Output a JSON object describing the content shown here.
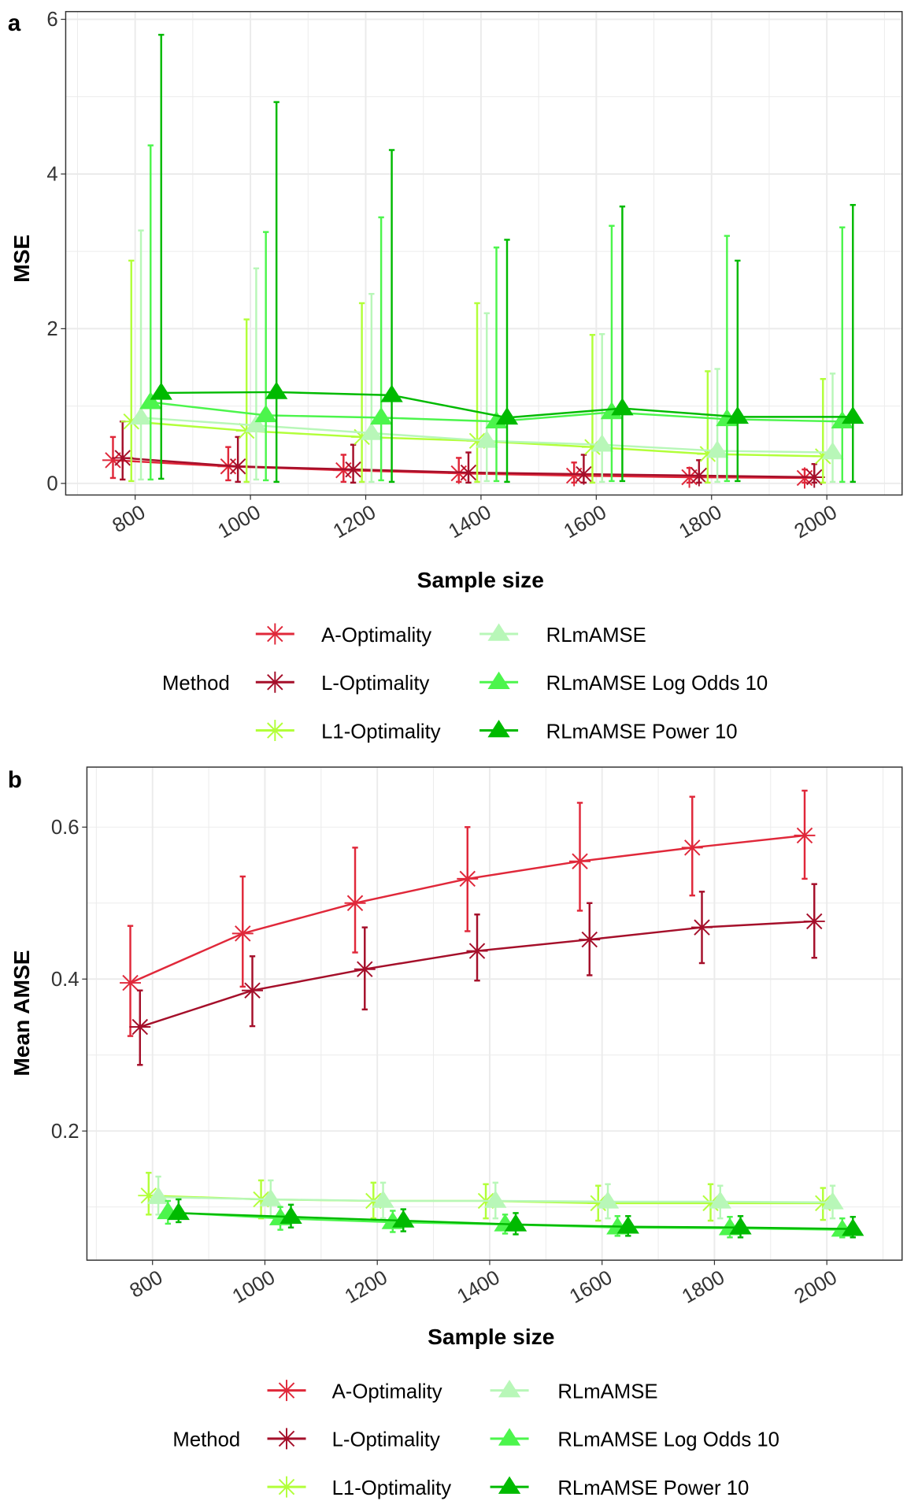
{
  "colors": {
    "A-Optimality": "#E0283A",
    "L-Optimality": "#A50F2A",
    "L1-Optimality": "#B2FF3A",
    "RLmAMSE": "#B8F7B8",
    "RLmAMSE Log Odds 10": "#4CF54C",
    "RLmAMSE Power 10": "#00BA00"
  },
  "legend": {
    "title": "Method",
    "items": [
      {
        "label": "A-Optimality",
        "shape": "asterisk"
      },
      {
        "label": "L-Optimality",
        "shape": "asterisk"
      },
      {
        "label": "L1-Optimality",
        "shape": "asterisk"
      },
      {
        "label": "RLmAMSE",
        "shape": "triangle"
      },
      {
        "label": "RLmAMSE Log Odds 10",
        "shape": "triangle"
      },
      {
        "label": "RLmAMSE Power 10",
        "shape": "triangle"
      }
    ]
  },
  "chart_data": [
    {
      "panel": "a",
      "type": "line",
      "xlabel": "Sample size",
      "ylabel": "MSE",
      "x": [
        800,
        1000,
        1200,
        1400,
        1600,
        1800,
        2000
      ],
      "xticks": [
        "800",
        "1000",
        "1200",
        "1400",
        "1600",
        "1800",
        "2000"
      ],
      "yticks": [
        "0",
        "2",
        "4",
        "6"
      ],
      "ylim": [
        -0.15,
        6.1
      ],
      "grid": true,
      "legend_position": "bottom",
      "series": [
        {
          "name": "A-Optimality",
          "values": [
            0.3,
            0.22,
            0.17,
            0.13,
            0.1,
            0.08,
            0.07
          ],
          "lower": [
            0.07,
            0.04,
            0.02,
            0.02,
            0.01,
            0.01,
            0.01
          ],
          "upper": [
            0.6,
            0.47,
            0.37,
            0.33,
            0.27,
            0.2,
            0.18
          ]
        },
        {
          "name": "L-Optimality",
          "values": [
            0.33,
            0.22,
            0.18,
            0.14,
            0.12,
            0.1,
            0.08
          ],
          "lower": [
            0.05,
            0.02,
            0.01,
            0.01,
            0.01,
            0.01,
            0.01
          ],
          "upper": [
            0.8,
            0.6,
            0.5,
            0.4,
            0.37,
            0.3,
            0.25
          ]
        },
        {
          "name": "L1-Optimality",
          "values": [
            0.8,
            0.68,
            0.6,
            0.55,
            0.47,
            0.38,
            0.35
          ],
          "lower": [
            0.03,
            0.02,
            0.02,
            0.02,
            0.01,
            0.01,
            0.01
          ],
          "upper": [
            2.88,
            2.12,
            2.33,
            2.33,
            1.92,
            1.45,
            1.35
          ]
        },
        {
          "name": "RLmAMSE",
          "values": [
            0.85,
            0.75,
            0.65,
            0.55,
            0.5,
            0.42,
            0.4
          ],
          "lower": [
            0.05,
            0.05,
            0.02,
            0.03,
            0.02,
            0.02,
            0.02
          ],
          "upper": [
            3.27,
            2.78,
            2.45,
            2.2,
            1.93,
            1.48,
            1.42
          ]
        },
        {
          "name": "RLmAMSE Log Odds 10",
          "values": [
            1.05,
            0.88,
            0.85,
            0.8,
            0.92,
            0.83,
            0.8
          ],
          "lower": [
            0.05,
            0.04,
            0.04,
            0.03,
            0.03,
            0.03,
            0.02
          ],
          "upper": [
            4.37,
            3.25,
            3.44,
            3.05,
            3.33,
            3.2,
            3.31
          ]
        },
        {
          "name": "RLmAMSE Power 10",
          "values": [
            1.17,
            1.18,
            1.14,
            0.85,
            0.97,
            0.86,
            0.86
          ],
          "lower": [
            0.06,
            0.02,
            0.02,
            0.02,
            0.03,
            0.03,
            0.02
          ],
          "upper": [
            5.8,
            4.93,
            4.31,
            3.15,
            3.58,
            2.88,
            3.6
          ]
        }
      ]
    },
    {
      "panel": "b",
      "type": "line",
      "xlabel": "Sample size",
      "ylabel": "Mean AMSE",
      "x": [
        800,
        1000,
        1200,
        1400,
        1600,
        1800,
        2000
      ],
      "xticks": [
        "800",
        "1000",
        "1200",
        "1400",
        "1600",
        "1800",
        "2000"
      ],
      "yticks": [
        "0.2",
        "0.4",
        "0.6"
      ],
      "ylim": [
        0.03,
        0.679
      ],
      "grid": true,
      "legend_position": "bottom",
      "series": [
        {
          "name": "A-Optimality",
          "values": [
            0.395,
            0.46,
            0.5,
            0.532,
            0.555,
            0.573,
            0.589
          ],
          "lower": [
            0.325,
            0.39,
            0.435,
            0.463,
            0.49,
            0.51,
            0.532
          ],
          "upper": [
            0.47,
            0.535,
            0.573,
            0.6,
            0.632,
            0.64,
            0.648
          ]
        },
        {
          "name": "L-Optimality",
          "values": [
            0.337,
            0.385,
            0.413,
            0.437,
            0.452,
            0.468,
            0.476
          ],
          "lower": [
            0.287,
            0.338,
            0.36,
            0.398,
            0.405,
            0.421,
            0.428
          ],
          "upper": [
            0.385,
            0.43,
            0.468,
            0.485,
            0.5,
            0.515,
            0.525
          ]
        },
        {
          "name": "L1-Optimality",
          "values": [
            0.115,
            0.11,
            0.108,
            0.108,
            0.105,
            0.105,
            0.105
          ],
          "lower": [
            0.09,
            0.085,
            0.085,
            0.085,
            0.082,
            0.082,
            0.083
          ],
          "upper": [
            0.145,
            0.135,
            0.132,
            0.13,
            0.128,
            0.13,
            0.125
          ]
        },
        {
          "name": "RLmAMSE",
          "values": [
            0.113,
            0.11,
            0.108,
            0.108,
            0.107,
            0.107,
            0.106
          ],
          "lower": [
            0.09,
            0.087,
            0.085,
            0.085,
            0.085,
            0.085,
            0.085
          ],
          "upper": [
            0.14,
            0.135,
            0.132,
            0.132,
            0.13,
            0.128,
            0.128
          ]
        },
        {
          "name": "RLmAMSE Log Odds 10",
          "values": [
            0.093,
            0.085,
            0.08,
            0.077,
            0.073,
            0.072,
            0.07
          ],
          "lower": [
            0.078,
            0.07,
            0.067,
            0.065,
            0.062,
            0.06,
            0.06
          ],
          "upper": [
            0.108,
            0.1,
            0.095,
            0.09,
            0.088,
            0.087,
            0.085
          ]
        },
        {
          "name": "RLmAMSE Power 10",
          "values": [
            0.092,
            0.087,
            0.082,
            0.077,
            0.074,
            0.073,
            0.071
          ],
          "lower": [
            0.08,
            0.073,
            0.068,
            0.064,
            0.062,
            0.06,
            0.06
          ],
          "upper": [
            0.11,
            0.103,
            0.097,
            0.092,
            0.088,
            0.088,
            0.087
          ]
        }
      ]
    }
  ],
  "panel_labels": [
    "a",
    "b"
  ]
}
